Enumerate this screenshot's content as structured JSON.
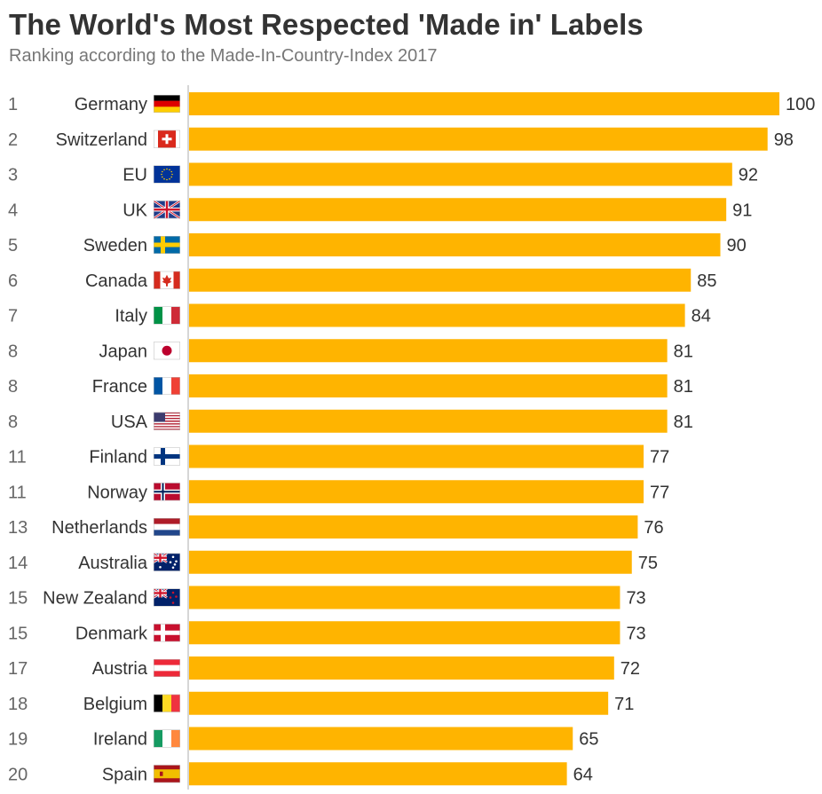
{
  "title": "The World's Most Respected 'Made in' Labels",
  "subtitle": "Ranking according to the Made-In-Country-Index 2017",
  "colors": {
    "bar": "#FFB400",
    "axis": "#c8c8c8",
    "title": "#333333",
    "subtitle": "#777777"
  },
  "chart_data": {
    "type": "bar",
    "orientation": "horizontal",
    "categories": [
      "Germany",
      "Switzerland",
      "EU",
      "UK",
      "Sweden",
      "Canada",
      "Italy",
      "Japan",
      "France",
      "USA",
      "Finland",
      "Norway",
      "Netherlands",
      "Australia",
      "New Zealand",
      "Denmark",
      "Austria",
      "Belgium",
      "Ireland",
      "Spain"
    ],
    "ranks": [
      "1",
      "2",
      "3",
      "4",
      "5",
      "6",
      "7",
      "8",
      "8",
      "8",
      "11",
      "11",
      "13",
      "14",
      "15",
      "15",
      "17",
      "18",
      "19",
      "20"
    ],
    "flag_icons": [
      "flag-germany-icon",
      "flag-switzerland-icon",
      "flag-eu-icon",
      "flag-uk-icon",
      "flag-sweden-icon",
      "flag-canada-icon",
      "flag-italy-icon",
      "flag-japan-icon",
      "flag-france-icon",
      "flag-usa-icon",
      "flag-finland-icon",
      "flag-norway-icon",
      "flag-netherlands-icon",
      "flag-australia-icon",
      "flag-new-zealand-icon",
      "flag-denmark-icon",
      "flag-austria-icon",
      "flag-belgium-icon",
      "flag-ireland-icon",
      "flag-spain-icon"
    ],
    "values": [
      100,
      98,
      92,
      91,
      90,
      85,
      84,
      81,
      81,
      81,
      77,
      77,
      76,
      75,
      73,
      73,
      72,
      71,
      65,
      64
    ],
    "xlim": [
      0,
      100
    ],
    "grid": false,
    "legend": "none"
  }
}
